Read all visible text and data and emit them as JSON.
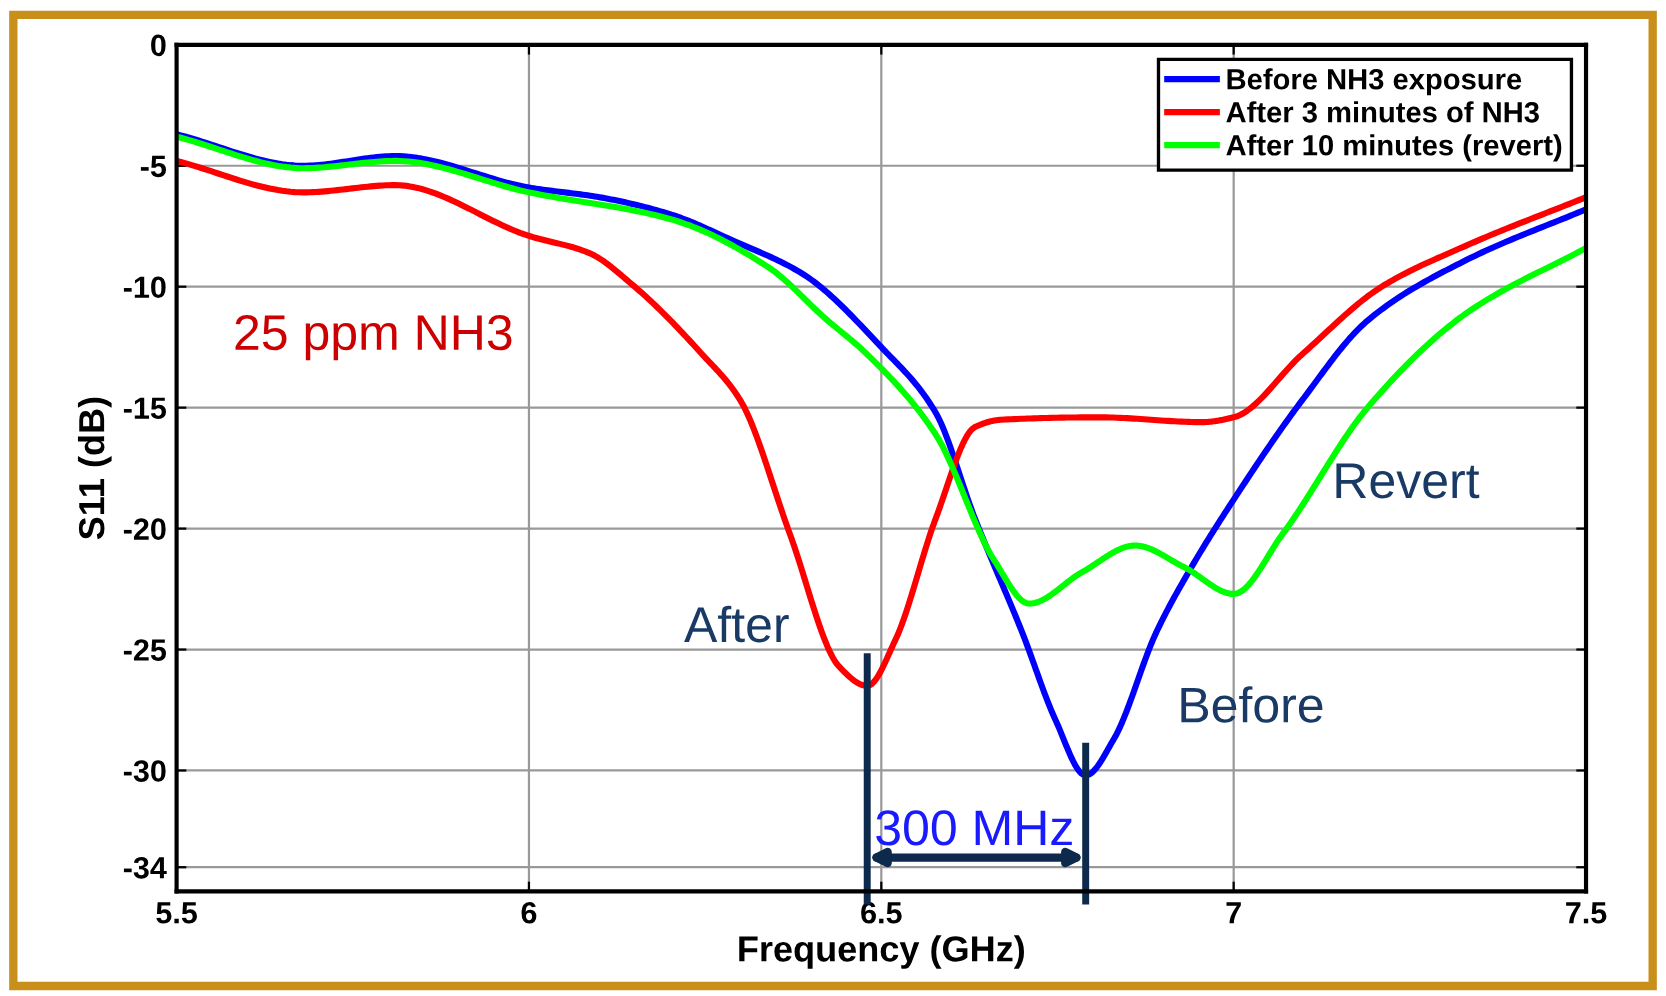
{
  "chart_data": {
    "type": "line",
    "xlabel": "Frequency (GHz)",
    "ylabel": "S11 (dB)",
    "xlim": [
      5.5,
      7.5
    ],
    "ylim": [
      -35,
      0
    ],
    "xticks": [
      5.5,
      6,
      6.5,
      7,
      7.5
    ],
    "yticks": [
      0,
      -5,
      -10,
      -15,
      -20,
      -25,
      -30,
      -34
    ],
    "grid": true,
    "legend": "top right",
    "line_style": "solid",
    "marker": "none",
    "series": [
      {
        "name": "Before NH3 exposure",
        "color": "#0000ff",
        "x": [
          5.5,
          5.68,
          5.81,
          6.0,
          6.1,
          6.2,
          6.29,
          6.39,
          6.5,
          6.577,
          6.633,
          6.7,
          6.747,
          6.79,
          6.83,
          6.89,
          6.936,
          7.0,
          7.097,
          7.19,
          7.33,
          7.5
        ],
        "values": [
          -3.7,
          -5.0,
          -4.6,
          -5.9,
          -6.3,
          -7.0,
          -8.1,
          -9.5,
          -12.5,
          -15.2,
          -19.6,
          -24.3,
          -27.9,
          -30.2,
          -28.7,
          -24.3,
          -21.8,
          -18.8,
          -14.7,
          -11.4,
          -8.9,
          -6.8
        ]
      },
      {
        "name": "After 3 minutes of NH3",
        "color": "#ff0000",
        "x": [
          5.5,
          5.68,
          5.81,
          6.0,
          6.085,
          6.15,
          6.246,
          6.3,
          6.37,
          6.44,
          6.48,
          6.52,
          6.577,
          6.633,
          6.67,
          6.81,
          6.955,
          7.0,
          7.097,
          7.21,
          7.33,
          7.5
        ],
        "values": [
          -4.8,
          -6.1,
          -5.8,
          -7.9,
          -8.6,
          -10.0,
          -12.8,
          -14.7,
          -20.2,
          -25.7,
          -26.5,
          -24.6,
          -19.6,
          -15.8,
          -15.5,
          -15.4,
          -15.6,
          -15.4,
          -12.8,
          -10.0,
          -8.3,
          -6.3
        ]
      },
      {
        "name": "After 10 minutes (revert)",
        "color": "#00ff00",
        "x": [
          5.5,
          5.68,
          5.81,
          6.0,
          6.2,
          6.34,
          6.42,
          6.48,
          6.577,
          6.66,
          6.71,
          6.785,
          6.86,
          6.93,
          7.0,
          7.07,
          7.19,
          7.33,
          7.5
        ],
        "values": [
          -3.8,
          -5.1,
          -4.8,
          -6.1,
          -7.2,
          -9.2,
          -11.3,
          -12.8,
          -16.1,
          -21.3,
          -23.1,
          -21.8,
          -20.7,
          -21.6,
          -22.7,
          -20.2,
          -15.0,
          -11.1,
          -8.4
        ]
      }
    ],
    "annotations": [
      "25 ppm NH3",
      "After",
      "Before",
      "Revert",
      "300 MHz"
    ]
  }
}
